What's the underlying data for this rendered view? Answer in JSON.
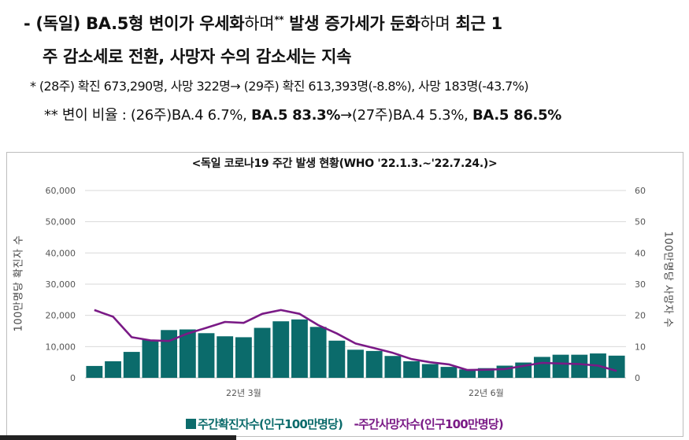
{
  "header": {
    "line1_prefix": "- (독일) BA.5형 변이가 우세화",
    "line1_mid1": "하며",
    "line1_sup": "**",
    "line1_mid2": " 발생 증가세가 둔화",
    "line1_mid3": "하며",
    "line1_suffix": " 최근 1",
    "line2": "주 감소세로 전환, 사망자 수의 감소세는 지속",
    "line3": "*  (28주) 확진 673,290명, 사망 322명→ (29주) 확진 613,393명(-8.8%), 사망 183명(-43.7%)",
    "line4_a": "** 변이 비율 : (26주)BA.4 6.7%, ",
    "line4_b": "BA.5 83.3%",
    "line4_c": "→(27주)BA.4 5.3%, ",
    "line4_d": "BA.5 86.5%"
  },
  "colors": {
    "bars": "#0b6b6b",
    "line": "#7a1a86",
    "grid": "#d9d9d9",
    "axis_text": "#555555"
  },
  "chart_data": {
    "type": "bar",
    "title": "<독일 코로나19 주간 발생 현황(WHO '22.1.3.~'22.7.24.)>",
    "ylabel": "100만명당 확진자 수",
    "y2label": "100만명당 사망자 수",
    "ylim": [
      0,
      60000
    ],
    "y2lim": [
      0,
      60
    ],
    "yticks": [
      "0",
      "10,000",
      "20,000",
      "30,000",
      "40,000",
      "50,000",
      "60,000"
    ],
    "y2ticks": [
      "0",
      "10",
      "20",
      "30",
      "40",
      "50",
      "60"
    ],
    "x_labels": [
      {
        "index": 8,
        "label": "22년 3월"
      },
      {
        "index": 21,
        "label": "22년 6월"
      }
    ],
    "grid": true,
    "legend_position": "bottom",
    "series": [
      {
        "name": "주간확진자수(인구100만명당)",
        "kind": "bar",
        "axis": "left",
        "values": [
          3800,
          5300,
          8300,
          12100,
          15300,
          15500,
          14300,
          13300,
          13000,
          16000,
          18100,
          18700,
          16300,
          11900,
          9000,
          8600,
          7000,
          5300,
          4400,
          3500,
          2700,
          3100,
          3900,
          4900,
          6700,
          7400,
          7400,
          7800,
          7100
        ]
      },
      {
        "name": "주간사망자수(인구100만명당)",
        "kind": "line",
        "axis": "right",
        "values": [
          21.7,
          19.6,
          13.0,
          12.0,
          11.8,
          14.2,
          16.0,
          17.9,
          17.6,
          20.5,
          21.7,
          20.5,
          16.9,
          14.2,
          11.0,
          9.5,
          8.0,
          6.0,
          5.0,
          4.3,
          2.5,
          2.6,
          2.8,
          3.8,
          4.8,
          4.6,
          4.4,
          3.9,
          2.2
        ]
      }
    ]
  }
}
